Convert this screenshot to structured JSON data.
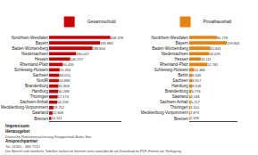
{
  "chart_data": [
    {
      "type": "bar",
      "orientation": "horizontal",
      "categories": [
        "Nordrhein-Westfalen",
        "Bayern",
        "Baden-Württemberg",
        "Niedersachsen",
        "Hessen",
        "Rheinland-Pfalz",
        "Schleswig-Holstein",
        "Sachsen",
        "NordR",
        "Brandenburg",
        "Hamburg",
        "Thüringen",
        "Sachsen-Anhalt",
        "Mecklenburg-Vorpommern",
        "Saarland",
        "Bremen"
      ],
      "series": [
        {
          "name": "Gesamtschuld",
          "color": "#cc0000",
          "values": [
            408378,
            339868,
            288804,
            180007,
            140257,
            90408,
            70334,
            68055,
            64888,
            61808,
            60288,
            57174,
            54258,
            28752,
            22808,
            14114
          ],
          "value_labels": [
            "408.378",
            "339.868",
            "288.804",
            "180.007",
            "140.257",
            "90.408",
            "70.334",
            "68.055",
            "64.888",
            "61.808",
            "60.288",
            "57.174",
            "54.258",
            "28.752",
            "22.808",
            "14.114"
          ]
        }
      ],
      "xlim": [
        0,
        480000
      ],
      "data_labels": true,
      "tick_labels": "y",
      "grid": false,
      "legend": "upper right",
      "annotations": [
        "Impressum",
        "Herausgeber",
        "Deutsche Rentenversicherung Knappschaft-Bahn-See",
        "Ansprechpartner",
        "Tel. 02361 - 384 7512",
        "Der Bericht und sämtliche Tabellen stehen im Internet unter www.kbs.de als Download im PDF-Format zur Verfügung."
      ]
    },
    {
      "type": "bar",
      "orientation": "horizontal",
      "categories": [
        "Nordrhein-Westfalen",
        "Bayern",
        "Baden-Württemberg",
        "Niedersachsen",
        "Hessen",
        "Rheinland-Pfalz",
        "Schleswig-Holstein",
        "Berlin",
        "Sachsen",
        "Hamburg",
        "Brandenburg",
        "Saarland",
        "Sachsen-Anhalt",
        "Thüringen",
        "Mecklenburg-Vorpommern",
        "Bremen"
      ],
      "series": [
        {
          "name": "Privathaushalt",
          "color": "#e8820a",
          "values": [
            80778,
            109840,
            61841,
            58428,
            34111,
            52781,
            14368,
            8348,
            8957,
            8108,
            6776,
            4548,
            5217,
            3110,
            2873,
            2598
          ],
          "value_labels": [
            "80.778",
            "109.840",
            "61.841",
            "58.428",
            "34.111",
            "52.781",
            "14.368",
            "8.348",
            "8.957",
            "8.108",
            "6.776",
            "4.548",
            "5.217",
            "3.110",
            "2.873",
            "2.598"
          ]
        }
      ],
      "xlim": [
        0,
        140000
      ],
      "data_labels": true,
      "tick_labels": "y",
      "grid": false,
      "legend": "upper right"
    }
  ]
}
